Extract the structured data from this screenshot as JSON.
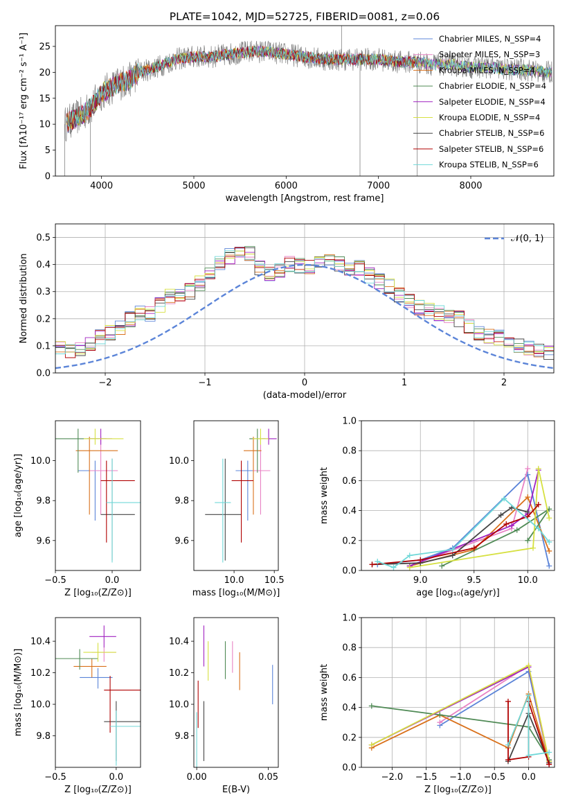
{
  "figure": {
    "title": "PLATE=1042, MJD=52725, FIBERID=0081, z=0.06"
  },
  "colors": {
    "Chabrier MILES": "#5b84d8",
    "Salpeter MILES": "#e882c4",
    "Kroupa MILES": "#d9701a",
    "Chabrier ELODIE": "#4f8a55",
    "Salpeter ELODIE": "#a020c0",
    "Kroupa ELODIE": "#d6e040",
    "Chabrier STELIB": "#444444",
    "Salpeter STELIB": "#b00000",
    "Kroupa STELIB": "#70d8d8",
    "data": "#808080",
    "normal": "#5b84d8",
    "grid": "#b0b0b0"
  },
  "chart_data": [
    {
      "id": "spectrum",
      "type": "line",
      "xlabel": "wavelength [Angstrom, rest frame]",
      "ylabel": "Flux [fλ10⁻¹⁷ erg cm⁻² s⁻¹ A⁻¹]",
      "xlim": [
        3500,
        8900
      ],
      "ylim": [
        0,
        29
      ],
      "xticks": [
        4000,
        5000,
        6000,
        7000,
        8000
      ],
      "yticks": [
        0,
        5,
        10,
        15,
        20,
        25
      ],
      "grid": false,
      "legend_position": "upper-right",
      "legend": [
        "Chabrier MILES, N_SSP=4",
        "Salpeter MILES, N_SSP=3",
        "Kroupa MILES, N_SSP=4",
        "Chabrier ELODIE, N_SSP=4",
        "Salpeter ELODIE, N_SSP=4",
        "Kroupa ELODIE, N_SSP=4",
        "Chabrier STELIB, N_SSP=6",
        "Salpeter STELIB, N_SSP=6",
        "Kroupa STELIB, N_SSP=6"
      ],
      "continuum": {
        "x": [
          3600,
          3700,
          3800,
          3900,
          4000,
          4100,
          4200,
          4300,
          4400,
          4600,
          4800,
          5000,
          5200,
          5400,
          5600,
          5800,
          6000,
          6200,
          6400,
          6600,
          6800,
          7000,
          7200,
          7400,
          7600,
          7800,
          8000,
          8200,
          8400,
          8600,
          8800
        ],
        "y": [
          10,
          11,
          12,
          13.5,
          16,
          17,
          18,
          18.5,
          20,
          21,
          22.5,
          23,
          23,
          23.5,
          24,
          24,
          23.5,
          23,
          22.5,
          22.5,
          22.5,
          22.5,
          22,
          22,
          21.5,
          21.5,
          21,
          21,
          20.5,
          20.5,
          20
        ]
      }
    },
    {
      "id": "residuals",
      "type": "line",
      "xlabel": "(data-model)/error",
      "ylabel": "Normed distribution",
      "xlim": [
        -2.5,
        2.5
      ],
      "ylim": [
        0,
        0.55
      ],
      "xticks": [
        -2,
        -1,
        0,
        1,
        2
      ],
      "yticks": [
        0.0,
        0.1,
        0.2,
        0.3,
        0.4,
        0.5
      ],
      "grid": true,
      "legend_position": "upper-right",
      "legend": [
        "𝒩(0, 1)"
      ],
      "bin_width": 0.1,
      "histogram_base": [
        0.02,
        0.025,
        0.03,
        0.035,
        0.04,
        0.05,
        0.06,
        0.07,
        0.085,
        0.1,
        0.09,
        0.085,
        0.09,
        0.11,
        0.135,
        0.15,
        0.17,
        0.2,
        0.22,
        0.22,
        0.25,
        0.28,
        0.29,
        0.3,
        0.33,
        0.36,
        0.41,
        0.43,
        0.45,
        0.44,
        0.39,
        0.37,
        0.38,
        0.4,
        0.395,
        0.39,
        0.4,
        0.41,
        0.4,
        0.39,
        0.385,
        0.36,
        0.34,
        0.32,
        0.29,
        0.27,
        0.24,
        0.23,
        0.22,
        0.21,
        0.2,
        0.17,
        0.15,
        0.14,
        0.13,
        0.12,
        0.1,
        0.09,
        0.08,
        0.075,
        0.07,
        0.065,
        0.06,
        0.05,
        0.045,
        0.04,
        0.035,
        0.03,
        0.028,
        0.026
      ]
    },
    {
      "id": "z-age",
      "type": "scatter",
      "xlabel": "Z [log₁₀(Z/Z⊙)]",
      "ylabel": "age  [log₁₀(age/yr)]",
      "xlim": [
        -0.5,
        0.25
      ],
      "ylim": [
        9.45,
        10.2
      ],
      "xticks": [
        -0.5,
        0.0
      ],
      "xtick_labels": [
        "−0.5",
        "0.0"
      ],
      "yticks": [
        9.6,
        9.8,
        10.0
      ],
      "grid": false,
      "points": [
        {
          "model": "Chabrier MILES",
          "x": -0.15,
          "xerr": [
            0.15,
            0.12
          ],
          "y": 9.95,
          "yerr": [
            0.25,
            0.05
          ]
        },
        {
          "model": "Salpeter MILES",
          "x": -0.1,
          "xerr": [
            0.1,
            0.15
          ],
          "y": 9.95,
          "yerr": [
            0.22,
            0.17
          ]
        },
        {
          "model": "Kroupa MILES",
          "x": -0.2,
          "xerr": [
            0.12,
            0.25
          ],
          "y": 10.05,
          "yerr": [
            0.32,
            0.07
          ]
        },
        {
          "model": "Chabrier ELODIE",
          "x": -0.3,
          "xerr": [
            0.2,
            0.25
          ],
          "y": 10.11,
          "yerr": [
            0.17,
            0.05
          ]
        },
        {
          "model": "Salpeter ELODIE",
          "x": -0.1,
          "xerr": [
            0.12,
            0.1
          ],
          "y": 10.11,
          "yerr": [
            0.03,
            0.05
          ]
        },
        {
          "model": "Kroupa ELODIE",
          "x": -0.15,
          "xerr": [
            0.1,
            0.25
          ],
          "y": 10.11,
          "yerr": [
            0.03,
            0.05
          ]
        },
        {
          "model": "Chabrier STELIB",
          "x": 0.0,
          "xerr": [
            0.1,
            0.2
          ],
          "y": 9.73,
          "yerr": [
            0.23,
            0.28
          ]
        },
        {
          "model": "Salpeter STELIB",
          "x": -0.05,
          "xerr": [
            0.05,
            0.25
          ],
          "y": 9.9,
          "yerr": [
            0.31,
            0.1
          ]
        },
        {
          "model": "Kroupa STELIB",
          "x": 0.0,
          "xerr": [
            0.05,
            0.25
          ],
          "y": 9.79,
          "yerr": [
            0.3,
            0.22
          ]
        }
      ]
    },
    {
      "id": "mass-age",
      "type": "scatter",
      "xlabel": "mass [log₁₀(M/M⊙)]",
      "ylabel": "",
      "xlim": [
        9.5,
        10.55
      ],
      "ylim": [
        9.45,
        10.2
      ],
      "xticks": [
        10.0,
        10.5
      ],
      "yticks": [
        9.6,
        9.8,
        10.0
      ],
      "grid": false,
      "points": [
        {
          "model": "Chabrier MILES",
          "x": 10.17,
          "xerr": [
            0.15,
            0.12
          ],
          "y": 9.95,
          "yerr": [
            0.25,
            0.05
          ]
        },
        {
          "model": "Salpeter MILES",
          "x": 10.33,
          "xerr": [
            0.1,
            0.12
          ],
          "y": 9.95,
          "yerr": [
            0.22,
            0.17
          ]
        },
        {
          "model": "Kroupa MILES",
          "x": 10.24,
          "xerr": [
            0.12,
            0.1
          ],
          "y": 10.05,
          "yerr": [
            0.32,
            0.07
          ]
        },
        {
          "model": "Chabrier ELODIE",
          "x": 10.29,
          "xerr": [
            0.1,
            0.1
          ],
          "y": 10.11,
          "yerr": [
            0.17,
            0.05
          ]
        },
        {
          "model": "Salpeter ELODIE",
          "x": 10.43,
          "xerr": [
            0.08,
            0.1
          ],
          "y": 10.11,
          "yerr": [
            0.03,
            0.05
          ]
        },
        {
          "model": "Kroupa ELODIE",
          "x": 10.33,
          "xerr": [
            0.1,
            0.1
          ],
          "y": 10.11,
          "yerr": [
            0.03,
            0.05
          ]
        },
        {
          "model": "Chabrier STELIB",
          "x": 9.89,
          "xerr": [
            0.25,
            0.2
          ],
          "y": 9.73,
          "yerr": [
            0.23,
            0.28
          ]
        },
        {
          "model": "Salpeter STELIB",
          "x": 10.09,
          "xerr": [
            0.12,
            0.15
          ],
          "y": 9.9,
          "yerr": [
            0.31,
            0.1
          ]
        },
        {
          "model": "Kroupa STELIB",
          "x": 9.86,
          "xerr": [
            0.1,
            0.1
          ],
          "y": 9.79,
          "yerr": [
            0.3,
            0.22
          ]
        }
      ]
    },
    {
      "id": "age-weight",
      "type": "line",
      "xlabel": "age  [log₁₀(age/yr)]",
      "ylabel": "mass weight",
      "xlim": [
        8.45,
        10.25
      ],
      "ylim": [
        0,
        1.0
      ],
      "xticks": [
        9.0,
        9.5,
        10.0
      ],
      "yticks": [
        0.0,
        0.2,
        0.4,
        0.6,
        0.8,
        1.0
      ],
      "grid": true,
      "series": [
        {
          "model": "Chabrier MILES",
          "x": [
            8.6,
            9.0,
            9.3,
            10.0,
            10.2
          ],
          "y": [
            0.04,
            0.07,
            0.15,
            0.64,
            0.03
          ]
        },
        {
          "model": "Salpeter MILES",
          "x": [
            8.9,
            9.85,
            10.0
          ],
          "y": [
            0.03,
            0.28,
            0.68
          ]
        },
        {
          "model": "Kroupa MILES",
          "x": [
            8.9,
            9.5,
            10.0,
            10.2
          ],
          "y": [
            0.03,
            0.14,
            0.49,
            0.13
          ]
        },
        {
          "model": "Chabrier ELODIE",
          "x": [
            9.2,
            9.9,
            10.2,
            10.0
          ],
          "y": [
            0.03,
            0.27,
            0.41,
            0.2
          ]
        },
        {
          "model": "Salpeter ELODIE",
          "x": [
            8.9,
            9.85,
            10.0,
            10.1
          ],
          "y": [
            0.03,
            0.3,
            0.38,
            0.67
          ]
        },
        {
          "model": "Kroupa ELODIE",
          "x": [
            8.9,
            10.05,
            10.1,
            10.2
          ],
          "y": [
            0.02,
            0.15,
            0.68,
            0.35
          ]
        },
        {
          "model": "Chabrier STELIB",
          "x": [
            8.55,
            9.0,
            9.3,
            9.75,
            9.85,
            10.0
          ],
          "y": [
            0.04,
            0.05,
            0.1,
            0.37,
            0.42,
            0.39
          ]
        },
        {
          "model": "Salpeter STELIB",
          "x": [
            8.55,
            9.0,
            9.5,
            9.8,
            10.0,
            10.1
          ],
          "y": [
            0.04,
            0.07,
            0.15,
            0.31,
            0.36,
            0.44
          ]
        },
        {
          "model": "Kroupa STELIB",
          "x": [
            8.6,
            8.75,
            8.9,
            9.3,
            9.78,
            10.1,
            10.2
          ],
          "y": [
            0.06,
            0.02,
            0.1,
            0.14,
            0.48,
            0.28,
            0.19
          ]
        }
      ]
    },
    {
      "id": "z-mass",
      "type": "scatter",
      "xlabel": "Z [log₁₀(Z/Z⊙)]",
      "ylabel": "mass [log₁₀(M/M⊙)]",
      "xlim": [
        -0.5,
        0.2
      ],
      "ylim": [
        9.6,
        10.55
      ],
      "xticks": [
        -0.5,
        0.0
      ],
      "xtick_labels": [
        "−0.5",
        "0.0"
      ],
      "yticks": [
        9.8,
        10.0,
        10.2,
        10.4
      ],
      "grid": false,
      "points": [
        {
          "model": "Chabrier MILES",
          "x": -0.15,
          "xerr": [
            0.15,
            0.12
          ],
          "y": 10.17,
          "yerr": [
            0.07,
            0.06
          ]
        },
        {
          "model": "Salpeter MILES",
          "x": -0.1,
          "xerr": [
            0.1,
            0.1
          ],
          "y": 10.33,
          "yerr": [
            0.06,
            0.03
          ]
        },
        {
          "model": "Kroupa MILES",
          "x": -0.2,
          "xerr": [
            0.15,
            0.12
          ],
          "y": 10.24,
          "yerr": [
            0.07,
            0.05
          ]
        },
        {
          "model": "Chabrier ELODIE",
          "x": -0.3,
          "xerr": [
            0.2,
            0.15
          ],
          "y": 10.29,
          "yerr": [
            0.07,
            0.06
          ]
        },
        {
          "model": "Salpeter ELODIE",
          "x": -0.1,
          "xerr": [
            0.12,
            0.1
          ],
          "y": 10.43,
          "yerr": [
            0.07,
            0.07
          ]
        },
        {
          "model": "Kroupa ELODIE",
          "x": -0.15,
          "xerr": [
            0.12,
            0.15
          ],
          "y": 10.33,
          "yerr": [
            0.06,
            0.06
          ]
        },
        {
          "model": "Chabrier STELIB",
          "x": 0.0,
          "xerr": [
            0.1,
            0.2
          ],
          "y": 9.89,
          "yerr": [
            0.25,
            0.13
          ]
        },
        {
          "model": "Salpeter STELIB",
          "x": -0.05,
          "xerr": [
            0.05,
            0.25
          ],
          "y": 10.09,
          "yerr": [
            0.27,
            0.09
          ]
        },
        {
          "model": "Kroupa STELIB",
          "x": 0.0,
          "xerr": [
            0.05,
            0.2
          ],
          "y": 9.86,
          "yerr": [
            0.25,
            0.1
          ]
        }
      ]
    },
    {
      "id": "ebv-mass",
      "type": "scatter",
      "xlabel": "E(B-V)",
      "ylabel": "",
      "xlim": [
        -0.002,
        0.057
      ],
      "ylim": [
        9.6,
        10.55
      ],
      "xticks": [
        0.0,
        0.05
      ],
      "xtick_labels": [
        "0.00",
        "0.05"
      ],
      "yticks": [
        9.8,
        10.0,
        10.2,
        10.4
      ],
      "grid": false,
      "points": [
        {
          "model": "Chabrier MILES",
          "x": 0.053,
          "y": 10.12,
          "yerr": [
            0.12,
            0.13
          ]
        },
        {
          "model": "Salpeter MILES",
          "x": 0.025,
          "y": 10.28,
          "yerr": [
            0.08,
            0.12
          ]
        },
        {
          "model": "Kroupa MILES",
          "x": 0.03,
          "y": 10.2,
          "yerr": [
            0.11,
            0.13
          ]
        },
        {
          "model": "Chabrier ELODIE",
          "x": 0.02,
          "y": 10.28,
          "yerr": [
            0.12,
            0.12
          ]
        },
        {
          "model": "Salpeter ELODIE",
          "x": 0.005,
          "y": 10.37,
          "yerr": [
            0.13,
            0.13
          ]
        },
        {
          "model": "Kroupa ELODIE",
          "x": 0.008,
          "y": 10.28,
          "yerr": [
            0.13,
            0.12
          ]
        },
        {
          "model": "Chabrier STELIB",
          "x": 0.005,
          "y": 9.89,
          "yerr": [
            0.25,
            0.13
          ]
        },
        {
          "model": "Salpeter STELIB",
          "x": 0.001,
          "y": 10.05,
          "yerr": [
            0.2,
            0.1
          ]
        },
        {
          "model": "Kroupa STELIB",
          "x": 0.0,
          "y": 9.8,
          "yerr": [
            0.2,
            0.15
          ]
        }
      ]
    },
    {
      "id": "z-weight",
      "type": "line",
      "xlabel": "Z [log₁₀(Z/Z⊙)]",
      "ylabel": "mass weight",
      "xlim": [
        -2.45,
        0.38
      ],
      "ylim": [
        0,
        1.0
      ],
      "xticks": [
        -2.0,
        -1.5,
        -1.0,
        -0.5,
        0.0
      ],
      "xtick_labels": [
        "−2.0",
        "−1.5",
        "−1.0",
        "−0.5",
        "0.0"
      ],
      "yticks": [
        0.0,
        0.2,
        0.4,
        0.6,
        0.8,
        1.0
      ],
      "grid": true,
      "series": [
        {
          "model": "Chabrier MILES",
          "x": [
            -1.3,
            0.0,
            0.3
          ],
          "y": [
            0.28,
            0.64,
            0.03
          ]
        },
        {
          "model": "Salpeter MILES",
          "x": [
            -1.3,
            0.0,
            0.3
          ],
          "y": [
            0.3,
            0.68,
            0.02
          ]
        },
        {
          "model": "Kroupa MILES",
          "x": [
            -2.3,
            -1.3,
            -0.3,
            0.0,
            0.3
          ],
          "y": [
            0.13,
            0.35,
            0.13,
            0.49,
            0.03
          ]
        },
        {
          "model": "Chabrier ELODIE",
          "x": [
            -2.3,
            -1.3,
            0.0,
            0.3
          ],
          "y": [
            0.41,
            0.35,
            0.27,
            0.05
          ]
        },
        {
          "model": "Salpeter ELODIE",
          "x": [
            -2.3,
            0.0,
            0.3
          ],
          "y": [
            0.15,
            0.67,
            0.04
          ]
        },
        {
          "model": "Kroupa ELODIE",
          "x": [
            -2.3,
            0.0,
            0.3
          ],
          "y": [
            0.15,
            0.68,
            0.04
          ]
        },
        {
          "model": "Chabrier STELIB",
          "x": [
            -0.3,
            0.0,
            0.3
          ],
          "y": [
            0.04,
            0.36,
            0.03
          ]
        },
        {
          "model": "Salpeter STELIB",
          "x": [
            -0.3,
            -0.3,
            0.0,
            0.0,
            0.3
          ],
          "y": [
            0.44,
            0.05,
            0.07,
            0.44,
            0.02
          ]
        },
        {
          "model": "Kroupa STELIB",
          "x": [
            -0.3,
            0.0,
            0.0,
            0.3
          ],
          "y": [
            0.15,
            0.48,
            0.08,
            0.1
          ]
        }
      ]
    }
  ]
}
